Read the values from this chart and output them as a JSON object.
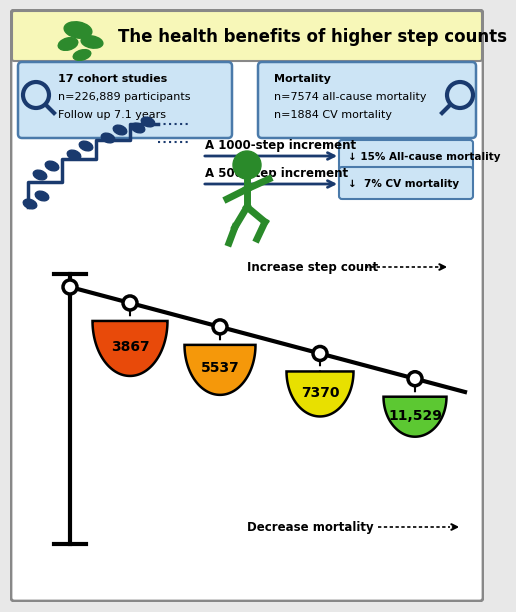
{
  "title": "The health benefits of higher step counts",
  "title_bg": "#f7f7b8",
  "title_fontsize": 12,
  "box1_lines": [
    "17 cohort studies",
    "n=226,889 participants",
    "Follow up 7.1 years"
  ],
  "box2_lines": [
    "Mortality",
    "n=7574 all-cause mortality",
    "n=1884 CV mortality"
  ],
  "box_bg": "#cce4f5",
  "box_edge": "#4a7aaa",
  "increment1_label": "A 1000-step increment",
  "increment2_label": "A 500-step increment",
  "result1_label": "↓ 15% All-cause mortality",
  "result2_label": "↓  7% CV mortality",
  "result_box_color": "#cce4f5",
  "step_values": [
    "3867",
    "5537",
    "7370",
    "11,529"
  ],
  "bowl_colors": [
    "#e84a0a",
    "#f5980a",
    "#e8e000",
    "#5cc832"
  ],
  "increase_label": "Increase step count",
  "decrease_label": "Decrease mortality",
  "stair_color": "#1a3a6e",
  "walker_color": "#2a8a2a",
  "outer_bg": "#f0f0f0"
}
